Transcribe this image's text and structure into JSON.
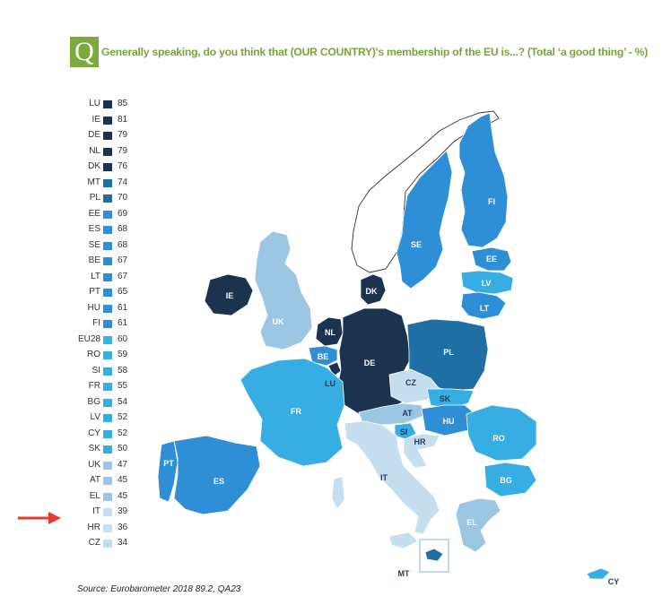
{
  "title": {
    "badge": "Q",
    "text": "Generally speaking, do you think that (OUR COUNTRY)'s membership of the EU is...? (Total ‘a good thing’ - %)"
  },
  "source": "Source: Eurobarometer 2018 89.2, QA23",
  "colors": {
    "title_green": "#76a63a",
    "badge_green": "#7cab3b",
    "bin_75_plus": "#1c3350",
    "bin_74_70": "#1f6fa5",
    "bin_69_60": "#2f8fd6",
    "bin_59_50": "#36aee3",
    "bin_49_40": "#9cc6e2",
    "bin_39_30": "#c6dff0",
    "eu28": "#37b5e5",
    "arrow": "#e53a2c"
  },
  "chart_data": {
    "type": "map",
    "highlight": "IT",
    "legend": [
      {
        "code": "LU",
        "value": 85
      },
      {
        "code": "IE",
        "value": 81
      },
      {
        "code": "DE",
        "value": 79
      },
      {
        "code": "NL",
        "value": 79
      },
      {
        "code": "DK",
        "value": 76
      },
      {
        "code": "MT",
        "value": 74
      },
      {
        "code": "PL",
        "value": 70
      },
      {
        "code": "EE",
        "value": 69
      },
      {
        "code": "ES",
        "value": 68
      },
      {
        "code": "SE",
        "value": 68
      },
      {
        "code": "BE",
        "value": 67
      },
      {
        "code": "LT",
        "value": 67
      },
      {
        "code": "PT",
        "value": 65
      },
      {
        "code": "HU",
        "value": 61
      },
      {
        "code": "FI",
        "value": 61
      },
      {
        "code": "EU28",
        "value": 60
      },
      {
        "code": "RO",
        "value": 59
      },
      {
        "code": "SI",
        "value": 58
      },
      {
        "code": "FR",
        "value": 55
      },
      {
        "code": "BG",
        "value": 54
      },
      {
        "code": "LV",
        "value": 52
      },
      {
        "code": "CY",
        "value": 52
      },
      {
        "code": "SK",
        "value": 50
      },
      {
        "code": "UK",
        "value": 47
      },
      {
        "code": "AT",
        "value": 45
      },
      {
        "code": "EL",
        "value": 45
      },
      {
        "code": "IT",
        "value": 39
      },
      {
        "code": "HR",
        "value": 36
      },
      {
        "code": "CZ",
        "value": 34
      }
    ],
    "map_labels": [
      "FI",
      "SE",
      "EE",
      "LV",
      "LT",
      "DK",
      "IE",
      "UK",
      "NL",
      "BE",
      "LU",
      "DE",
      "PL",
      "CZ",
      "SK",
      "AT",
      "HU",
      "SI",
      "HR",
      "RO",
      "FR",
      "PT",
      "ES",
      "IT",
      "BG",
      "EL",
      "MT",
      "CY"
    ]
  }
}
